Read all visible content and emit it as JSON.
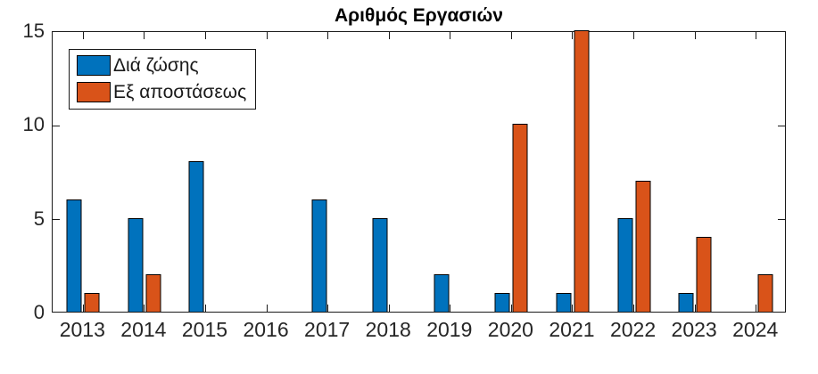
{
  "chart_data": {
    "type": "bar",
    "title": "Αριθμός Εργασιών",
    "categories": [
      "2013",
      "2014",
      "2015",
      "2016",
      "2017",
      "2018",
      "2019",
      "2020",
      "2021",
      "2022",
      "2023",
      "2024"
    ],
    "series": [
      {
        "name": "Διά ζώσης",
        "color": "#0072BD",
        "values": [
          6,
          5,
          8,
          0,
          6,
          5,
          2,
          1,
          1,
          5,
          1,
          0
        ]
      },
      {
        "name": "Εξ αποστάσεως",
        "color": "#D95319",
        "values": [
          1,
          2,
          0,
          0,
          0,
          0,
          0,
          10,
          15,
          7,
          4,
          2
        ]
      }
    ],
    "xlabel": "",
    "ylabel": "",
    "ylim": [
      0,
      15
    ],
    "yticks": [
      0,
      5,
      10,
      15
    ],
    "grid": false,
    "legend_position": "top-left",
    "bar_edge_color": "#000000",
    "axis_color": "#1a1a1a",
    "tick_label_color": "#262626",
    "background_color": "#ffffff"
  }
}
